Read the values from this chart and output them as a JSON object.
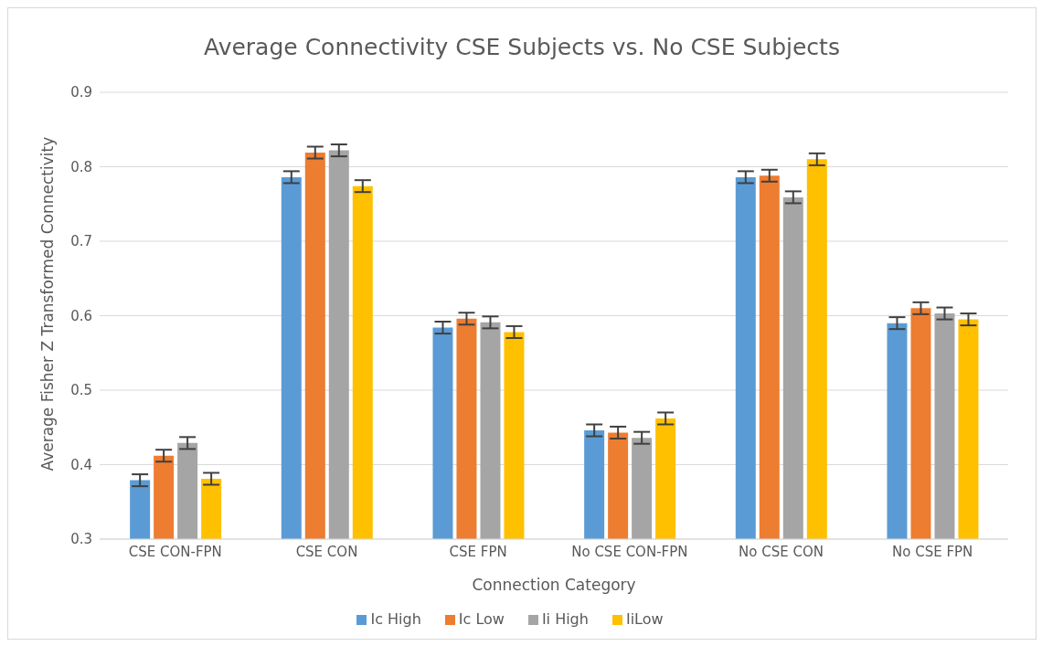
{
  "chart_data": {
    "type": "bar",
    "title": "Average Connectivity CSE Subjects vs. No CSE Subjects",
    "xlabel": "Connection Category",
    "ylabel": "Average Fisher Z Transformed Connectivity",
    "categories": [
      "CSE CON-FPN",
      "CSE CON",
      "CSE FPN",
      "No CSE CON-FPN",
      "No CSE CON",
      "No CSE FPN"
    ],
    "series": [
      {
        "name": "Ic High",
        "color": "#5b9bd5",
        "values": [
          0.379,
          0.786,
          0.584,
          0.446,
          0.786,
          0.59
        ],
        "errors": [
          0.008,
          0.008,
          0.008,
          0.008,
          0.008,
          0.008
        ]
      },
      {
        "name": "Ic Low",
        "color": "#ed7d31",
        "values": [
          0.412,
          0.819,
          0.596,
          0.443,
          0.788,
          0.61
        ],
        "errors": [
          0.008,
          0.008,
          0.008,
          0.008,
          0.008,
          0.008
        ]
      },
      {
        "name": "Ii High",
        "color": "#a5a5a5",
        "values": [
          0.429,
          0.822,
          0.591,
          0.436,
          0.759,
          0.603
        ],
        "errors": [
          0.008,
          0.008,
          0.008,
          0.008,
          0.008,
          0.008
        ]
      },
      {
        "name": "IiLow",
        "color": "#ffc000",
        "values": [
          0.381,
          0.774,
          0.578,
          0.462,
          0.81,
          0.595
        ],
        "errors": [
          0.008,
          0.008,
          0.008,
          0.008,
          0.008,
          0.008
        ]
      }
    ],
    "ylim": [
      0.3,
      0.9
    ],
    "yticks": [
      0.3,
      0.4,
      0.5,
      0.6,
      0.7,
      0.8,
      0.9
    ],
    "grid": "y",
    "legend": "bottom"
  }
}
